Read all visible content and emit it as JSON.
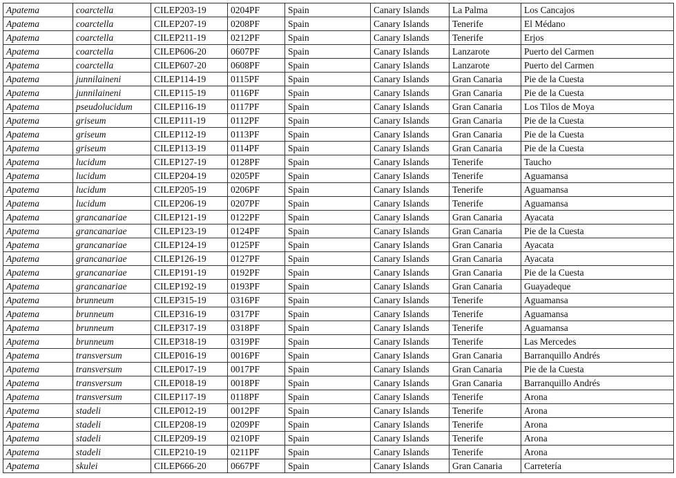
{
  "table": {
    "rows": [
      [
        "Apatema",
        "coarctella",
        "CILEP203-19",
        "0204PF",
        "Spain",
        "Canary Islands",
        "La Palma",
        "Los Cancajos"
      ],
      [
        "Apatema",
        "coarctella",
        "CILEP207-19",
        "0208PF",
        "Spain",
        "Canary Islands",
        "Tenerife",
        "El Médano"
      ],
      [
        "Apatema",
        "coarctella",
        "CILEP211-19",
        "0212PF",
        "Spain",
        "Canary Islands",
        "Tenerife",
        "Erjos"
      ],
      [
        "Apatema",
        "coarctella",
        "CILEP606-20",
        "0607PF",
        "Spain",
        "Canary Islands",
        "Lanzarote",
        "Puerto del Carmen"
      ],
      [
        "Apatema",
        "coarctella",
        "CILEP607-20",
        "0608PF",
        "Spain",
        "Canary Islands",
        "Lanzarote",
        "Puerto del Carmen"
      ],
      [
        "Apatema",
        "junnilaineni",
        "CILEP114-19",
        "0115PF",
        "Spain",
        "Canary Islands",
        "Gran Canaria",
        "Pie de la Cuesta"
      ],
      [
        "Apatema",
        "junnilaineni",
        "CILEP115-19",
        "0116PF",
        "Spain",
        "Canary Islands",
        "Gran Canaria",
        "Pie de la Cuesta"
      ],
      [
        "Apatema",
        "pseudolucidum",
        "CILEP116-19",
        "0117PF",
        "Spain",
        "Canary Islands",
        "Gran Canaria",
        "Los Tilos de Moya"
      ],
      [
        "Apatema",
        "griseum",
        "CILEP111-19",
        "0112PF",
        "Spain",
        "Canary Islands",
        "Gran Canaria",
        "Pie de la Cuesta"
      ],
      [
        "Apatema",
        "griseum",
        "CILEP112-19",
        "0113PF",
        "Spain",
        "Canary Islands",
        "Gran Canaria",
        "Pie de la Cuesta"
      ],
      [
        "Apatema",
        "griseum",
        "CILEP113-19",
        "0114PF",
        "Spain",
        "Canary Islands",
        "Gran Canaria",
        "Pie de la Cuesta"
      ],
      [
        "Apatema",
        "lucidum",
        "CILEP127-19",
        "0128PF",
        "Spain",
        "Canary Islands",
        "Tenerife",
        "Taucho"
      ],
      [
        "Apatema",
        "lucidum",
        "CILEP204-19",
        "0205PF",
        "Spain",
        "Canary Islands",
        "Tenerife",
        "Aguamansa"
      ],
      [
        "Apatema",
        "lucidum",
        "CILEP205-19",
        "0206PF",
        "Spain",
        "Canary Islands",
        "Tenerife",
        "Aguamansa"
      ],
      [
        "Apatema",
        "lucidum",
        "CILEP206-19",
        "0207PF",
        "Spain",
        "Canary Islands",
        "Tenerife",
        "Aguamansa"
      ],
      [
        "Apatema",
        "grancanariae",
        "CILEP121-19",
        "0122PF",
        "Spain",
        "Canary Islands",
        "Gran Canaria",
        "Ayacata"
      ],
      [
        "Apatema",
        "grancanariae",
        "CILEP123-19",
        "0124PF",
        "Spain",
        "Canary Islands",
        "Gran Canaria",
        "Pie de la Cuesta"
      ],
      [
        "Apatema",
        "grancanariae",
        "CILEP124-19",
        "0125PF",
        "Spain",
        "Canary Islands",
        "Gran Canaria",
        "Ayacata"
      ],
      [
        "Apatema",
        "grancanariae",
        "CILEP126-19",
        "0127PF",
        "Spain",
        "Canary Islands",
        "Gran Canaria",
        "Ayacata"
      ],
      [
        "Apatema",
        "grancanariae",
        "CILEP191-19",
        "0192PF",
        "Spain",
        "Canary Islands",
        "Gran Canaria",
        "Pie de la Cuesta"
      ],
      [
        "Apatema",
        "grancanariae",
        "CILEP192-19",
        "0193PF",
        "Spain",
        "Canary Islands",
        "Gran Canaria",
        "Guayadeque"
      ],
      [
        "Apatema",
        "brunneum",
        "CILEP315-19",
        "0316PF",
        "Spain",
        "Canary Islands",
        "Tenerife",
        "Aguamansa"
      ],
      [
        "Apatema",
        "brunneum",
        "CILEP316-19",
        "0317PF",
        "Spain",
        "Canary Islands",
        "Tenerife",
        "Aguamansa"
      ],
      [
        "Apatema",
        "brunneum",
        "CILEP317-19",
        "0318PF",
        "Spain",
        "Canary Islands",
        "Tenerife",
        "Aguamansa"
      ],
      [
        "Apatema",
        "brunneum",
        "CILEP318-19",
        "0319PF",
        "Spain",
        "Canary Islands",
        "Tenerife",
        "Las Mercedes"
      ],
      [
        "Apatema",
        "transversum",
        "CILEP016-19",
        "0016PF",
        "Spain",
        "Canary Islands",
        "Gran Canaria",
        "Barranquillo Andrés"
      ],
      [
        "Apatema",
        "transversum",
        "CILEP017-19",
        "0017PF",
        "Spain",
        "Canary Islands",
        "Gran Canaria",
        "Pie de la Cuesta"
      ],
      [
        "Apatema",
        "transversum",
        "CILEP018-19",
        "0018PF",
        "Spain",
        "Canary Islands",
        "Gran Canaria",
        "Barranquillo Andrés"
      ],
      [
        "Apatema",
        "transversum",
        "CILEP117-19",
        "0118PF",
        "Spain",
        "Canary Islands",
        "Tenerife",
        "Arona"
      ],
      [
        "Apatema",
        "stadeli",
        "CILEP012-19",
        "0012PF",
        "Spain",
        "Canary Islands",
        "Tenerife",
        "Arona"
      ],
      [
        "Apatema",
        "stadeli",
        "CILEP208-19",
        "0209PF",
        "Spain",
        "Canary Islands",
        "Tenerife",
        "Arona"
      ],
      [
        "Apatema",
        "stadeli",
        "CILEP209-19",
        "0210PF",
        "Spain",
        "Canary Islands",
        "Tenerife",
        "Arona"
      ],
      [
        "Apatema",
        "stadeli",
        "CILEP210-19",
        "0211PF",
        "Spain",
        "Canary Islands",
        "Tenerife",
        "Arona"
      ],
      [
        "Apatema",
        "skulei",
        "CILEP666-20",
        "0667PF",
        "Spain",
        "Canary Islands",
        "Gran Canaria",
        "Carretería"
      ]
    ]
  }
}
